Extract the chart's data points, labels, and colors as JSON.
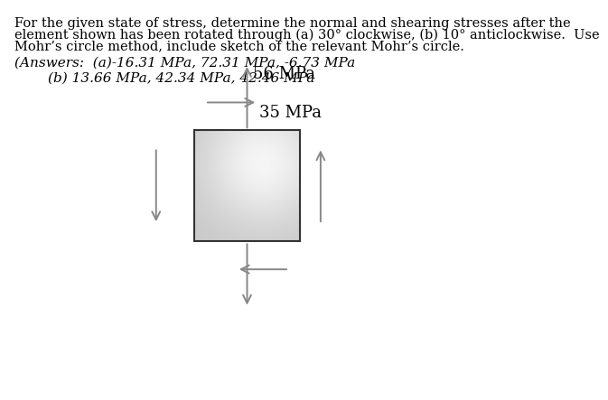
{
  "title_lines": [
    "For the given state of stress, determine the normal and shearing stresses after the",
    "element shown has been rotated through (a) 30° clockwise, (b) 10° anticlockwise.  Use",
    "Mohr’s circle method, include sketch of the relevant Mohr’s circle."
  ],
  "answers_line1": "(Answers:  (a)-16.31 MPa, 72.31 MPa, -6.73 MPa",
  "answers_line2": "(b) 13.66 MPa, 42.34 MPa, 42.46 MPa",
  "stress_label_top": "56 MPa",
  "stress_label_right": "35 MPa",
  "arrow_color": "#888888",
  "background": "#ffffff",
  "text_color": "#000000",
  "title_fontsize": 10.5,
  "answer_fontsize": 11,
  "stress_fontsize": 13
}
